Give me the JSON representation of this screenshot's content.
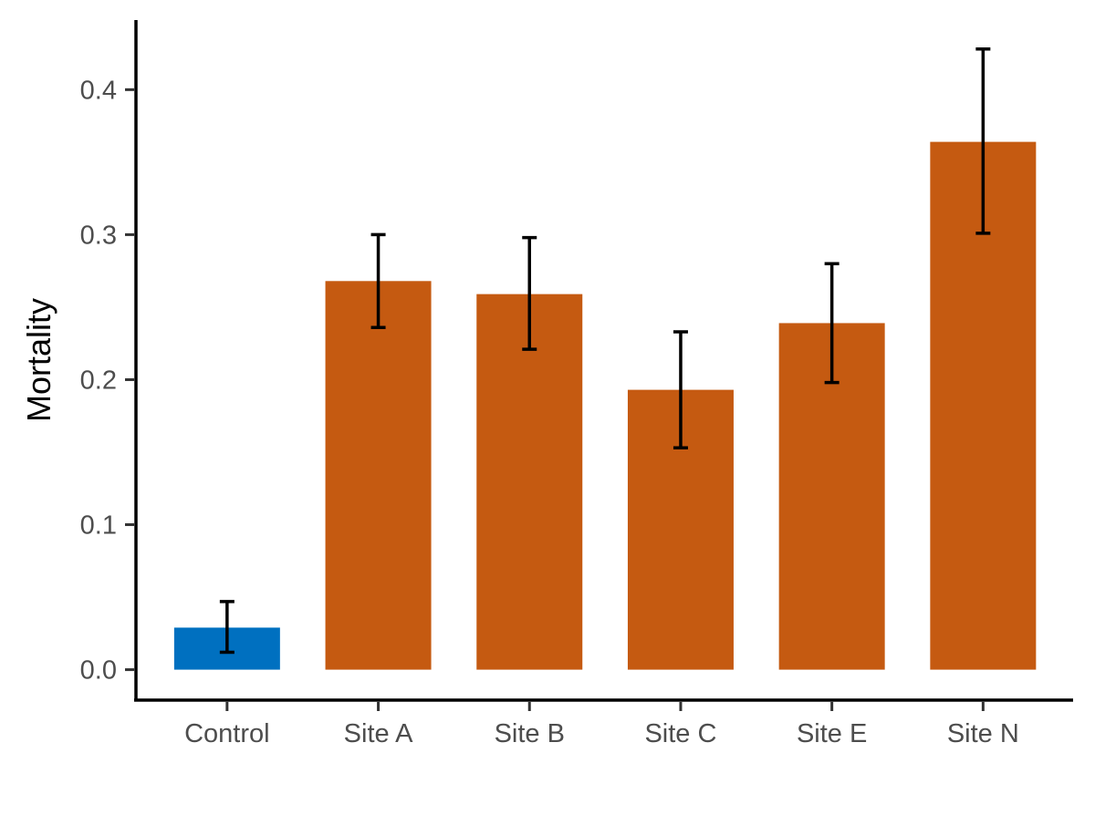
{
  "chart_data": {
    "type": "bar",
    "title": "",
    "xlabel": "",
    "ylabel": "Mortality",
    "ylim": [
      -0.021,
      0.448
    ],
    "yticks": [
      0.0,
      0.1,
      0.2,
      0.3,
      0.4
    ],
    "ytick_labels": [
      "0.0",
      "0.1",
      "0.2",
      "0.3",
      "0.4"
    ],
    "grid": false,
    "legend": "none",
    "categories": [
      "Control",
      "Site A",
      "Site B",
      "Site C",
      "Site E",
      "Site N"
    ],
    "values": [
      0.029,
      0.268,
      0.259,
      0.193,
      0.239,
      0.364
    ],
    "error_low": [
      0.012,
      0.236,
      0.221,
      0.153,
      0.198,
      0.301
    ],
    "error_high": [
      0.047,
      0.3,
      0.298,
      0.233,
      0.28,
      0.428
    ],
    "bar_colors": [
      "#0070C0",
      "#C55A11",
      "#C55A11",
      "#C55A11",
      "#C55A11",
      "#C55A11"
    ]
  }
}
